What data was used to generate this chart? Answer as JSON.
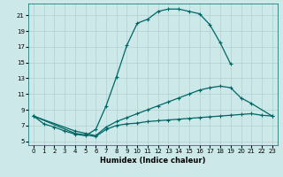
{
  "title": "",
  "xlabel": "Humidex (Indice chaleur)",
  "bg_color": "#cce8e8",
  "grid_color": "#b0d0d0",
  "line_color": "#006666",
  "xlim": [
    -0.5,
    23.5
  ],
  "ylim": [
    4.5,
    22.5
  ],
  "xticks": [
    0,
    1,
    2,
    3,
    4,
    5,
    6,
    7,
    8,
    9,
    10,
    11,
    12,
    13,
    14,
    15,
    16,
    17,
    18,
    19,
    20,
    21,
    22,
    23
  ],
  "yticks": [
    5,
    7,
    9,
    11,
    13,
    15,
    17,
    19,
    21
  ],
  "curve1_x": [
    0,
    1,
    2,
    3,
    4,
    5,
    6,
    7,
    8,
    9,
    10,
    11,
    12,
    13,
    14,
    15,
    16,
    17,
    18,
    19
  ],
  "curve1_y": [
    8.2,
    7.2,
    6.8,
    6.3,
    5.9,
    5.7,
    6.5,
    9.5,
    13.2,
    17.2,
    20.0,
    20.5,
    21.5,
    21.8,
    21.8,
    21.5,
    21.2,
    19.8,
    17.5,
    14.8
  ],
  "curve2_x": [
    0,
    4,
    5,
    6,
    7,
    8,
    9,
    10,
    11,
    12,
    13,
    14,
    15,
    16,
    17,
    18,
    19,
    20,
    21,
    23
  ],
  "curve2_y": [
    8.2,
    6.3,
    6.0,
    5.7,
    6.8,
    7.5,
    8.0,
    8.5,
    9.0,
    9.5,
    10.0,
    10.5,
    11.0,
    11.5,
    11.8,
    12.0,
    11.8,
    10.5,
    9.8,
    8.2
  ],
  "curve3_x": [
    0,
    4,
    5,
    6,
    7,
    8,
    9,
    10,
    11,
    12,
    13,
    14,
    15,
    16,
    17,
    18,
    19,
    20,
    21,
    22,
    23
  ],
  "curve3_y": [
    8.2,
    6.0,
    5.8,
    5.6,
    6.5,
    7.0,
    7.2,
    7.3,
    7.5,
    7.6,
    7.7,
    7.8,
    7.9,
    8.0,
    8.1,
    8.2,
    8.3,
    8.4,
    8.5,
    8.3,
    8.2
  ]
}
